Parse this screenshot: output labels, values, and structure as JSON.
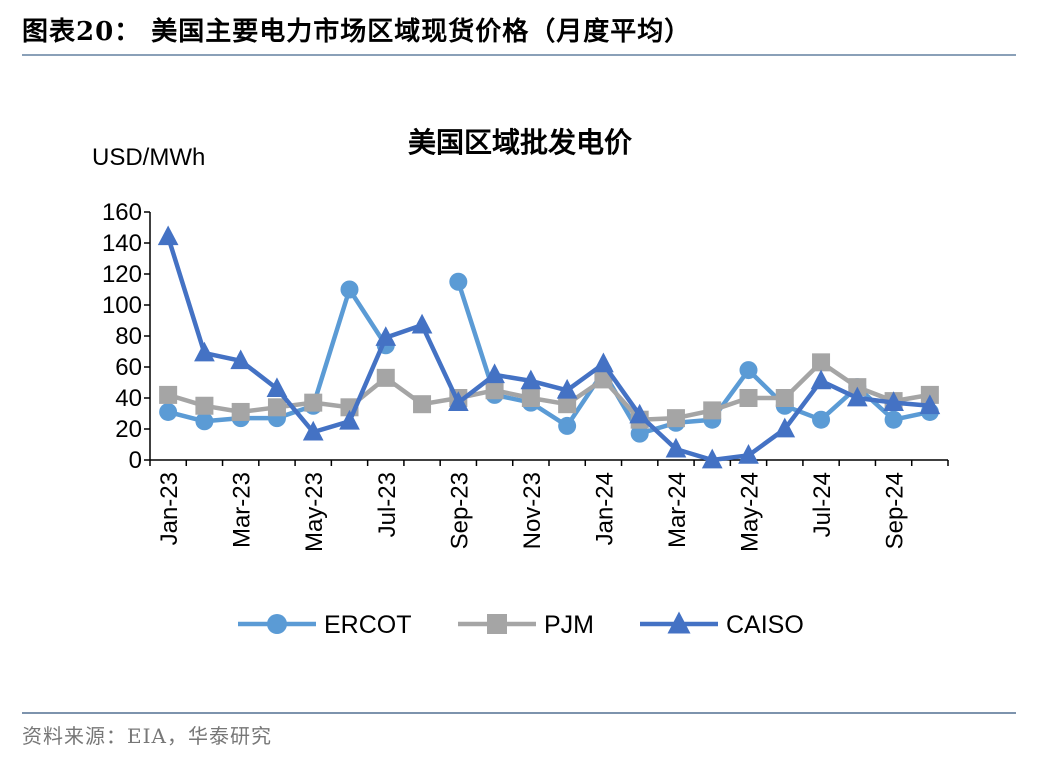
{
  "header": {
    "title": "图表20： 美国主要电力市场区域现货价格（月度平均）"
  },
  "footer": {
    "source": "资料来源：EIA，华泰研究"
  },
  "colors": {
    "ERCOT": "#5b9bd5",
    "PJM": "#a5a5a5",
    "CAISO": "#4472c4",
    "axis": "#000000"
  },
  "chart_data": {
    "type": "line",
    "title": "美国区域批发电价",
    "ylabel": "USD/MWh",
    "ylim": [
      0,
      160
    ],
    "yticks": [
      "0",
      "20",
      "40",
      "60",
      "80",
      "100",
      "120",
      "140",
      "160"
    ],
    "categories": [
      "Jan-23",
      "Feb-23",
      "Mar-23",
      "Apr-23",
      "May-23",
      "Jun-23",
      "Jul-23",
      "Aug-23",
      "Sep-23",
      "Oct-23",
      "Nov-23",
      "Dec-23",
      "Jan-24",
      "Feb-24",
      "Mar-24",
      "Apr-24",
      "May-24",
      "Jun-24",
      "Jul-24",
      "Aug-24",
      "Sep-24",
      "Oct-24"
    ],
    "xticks": [
      "Jan-23",
      "Mar-23",
      "May-23",
      "Jul-23",
      "Sep-23",
      "Nov-23",
      "Jan-24",
      "Mar-24",
      "May-24",
      "Jul-24",
      "Sep-24"
    ],
    "legend_position": "bottom",
    "series": [
      {
        "name": "ERCOT",
        "marker": "circle",
        "values": [
          31,
          25,
          27,
          27,
          35,
          110,
          74,
          null,
          115,
          42,
          37,
          22,
          57,
          17,
          24,
          26,
          58,
          35,
          26,
          47,
          26,
          31
        ]
      },
      {
        "name": "PJM",
        "marker": "square",
        "values": [
          42,
          35,
          31,
          34,
          37,
          34,
          53,
          36,
          40,
          45,
          40,
          36,
          52,
          26,
          27,
          32,
          40,
          40,
          63,
          47,
          38,
          42
        ]
      },
      {
        "name": "CAISO",
        "marker": "triangle",
        "values": [
          144,
          69,
          64,
          46,
          18,
          25,
          79,
          87,
          37,
          55,
          51,
          45,
          62,
          29,
          7,
          0,
          3,
          20,
          51,
          40,
          37,
          35
        ]
      }
    ]
  }
}
